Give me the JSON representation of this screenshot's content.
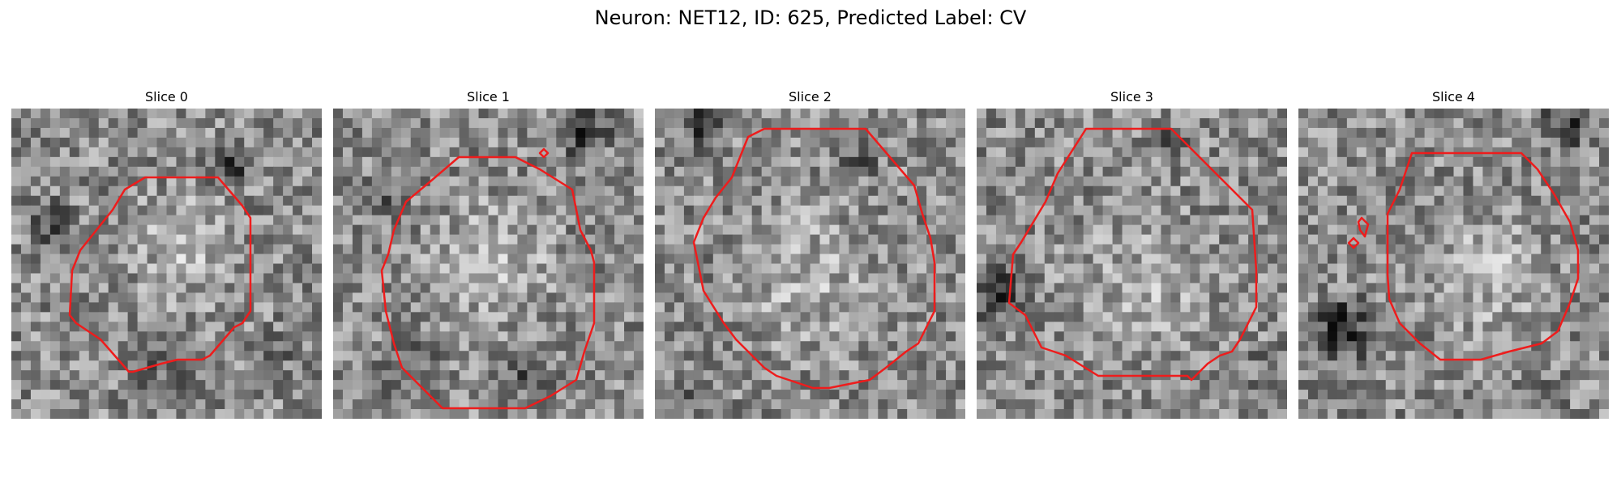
{
  "figure": {
    "title": "Neuron: NET12, ID: 625, Predicted Label: CV",
    "contour_color": "#ee1c1c"
  },
  "panels": [
    {
      "label": "Slice 0"
    },
    {
      "label": "Slice 1"
    },
    {
      "label": "Slice 2"
    },
    {
      "label": "Slice 3"
    },
    {
      "label": "Slice 4"
    }
  ]
}
